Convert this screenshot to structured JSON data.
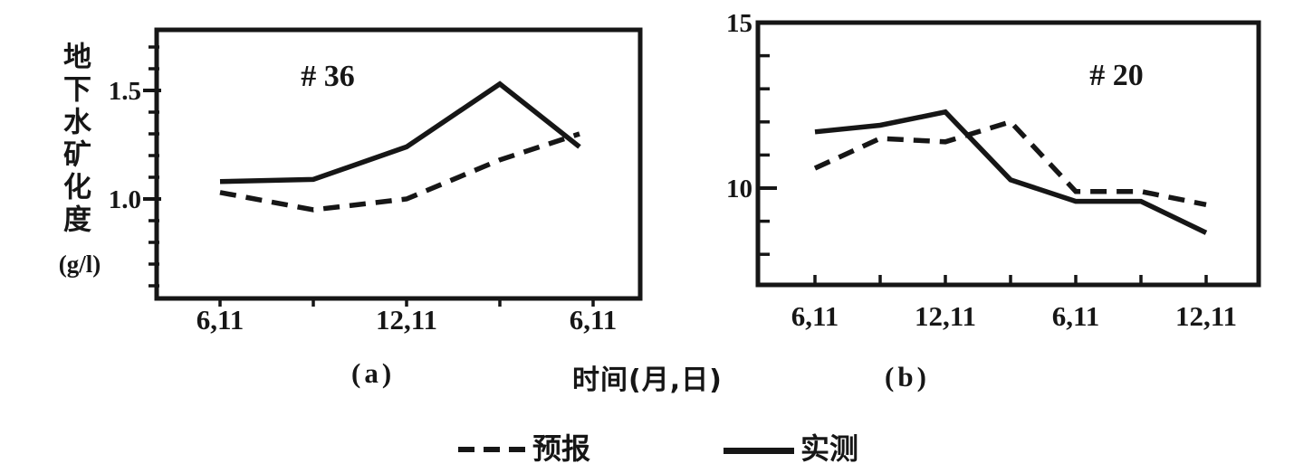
{
  "figure": {
    "background": "#ffffff",
    "ink_color": "#161616",
    "ylabel": "地下水矿化度",
    "ylabel_unit": "(g/l)",
    "xlabel": "时间(月,日)",
    "panel_a_caption": "(a)",
    "panel_b_caption": "(b)",
    "legend": [
      {
        "name": "预报",
        "style": "dashed"
      },
      {
        "name": "实测",
        "style": "solid"
      }
    ]
  },
  "chart_data": [
    {
      "type": "line",
      "panel": "a",
      "panel_label": "# 36",
      "title": "# 36",
      "xlabel": "时间(月,日)",
      "ylabel": "地下水矿化度 (g/l)",
      "categories": [
        "6,11",
        "",
        "12,11",
        "",
        "6,11"
      ],
      "series": [
        {
          "name": "实测",
          "style": "solid",
          "values": [
            1.08,
            1.09,
            1.24,
            1.53,
            1.24
          ]
        },
        {
          "name": "预报",
          "style": "dashed",
          "values": [
            1.03,
            0.95,
            1.0,
            1.18,
            1.3
          ]
        }
      ],
      "ylim": [
        0.57,
        1.74
      ],
      "yticks_major": [
        1.0,
        1.5
      ],
      "ytick_labels": [
        "1.0",
        "1.5"
      ],
      "ytick_minor_step": 0.1,
      "grid": false,
      "legend_position": "below-figure"
    },
    {
      "type": "line",
      "panel": "b",
      "panel_label": "# 20",
      "title": "# 20",
      "xlabel": "时间(月,日)",
      "ylabel": "地下水矿化度 (g/l)",
      "categories": [
        "6,11",
        "",
        "12,11",
        "",
        "6,11",
        "",
        "12,11"
      ],
      "series": [
        {
          "name": "实测",
          "style": "solid",
          "values": [
            11.7,
            11.9,
            12.3,
            10.25,
            9.6,
            9.6,
            8.65
          ]
        },
        {
          "name": "预报",
          "style": "dashed",
          "values": [
            10.6,
            11.5,
            11.4,
            12.0,
            9.9,
            9.9,
            9.5
          ]
        }
      ],
      "ylim": [
        7.0,
        15.0
      ],
      "yticks_major": [
        10,
        15
      ],
      "ytick_labels": [
        "10",
        "15"
      ],
      "ytick_minor_step": 1,
      "grid": false,
      "legend_position": "below-figure"
    }
  ]
}
